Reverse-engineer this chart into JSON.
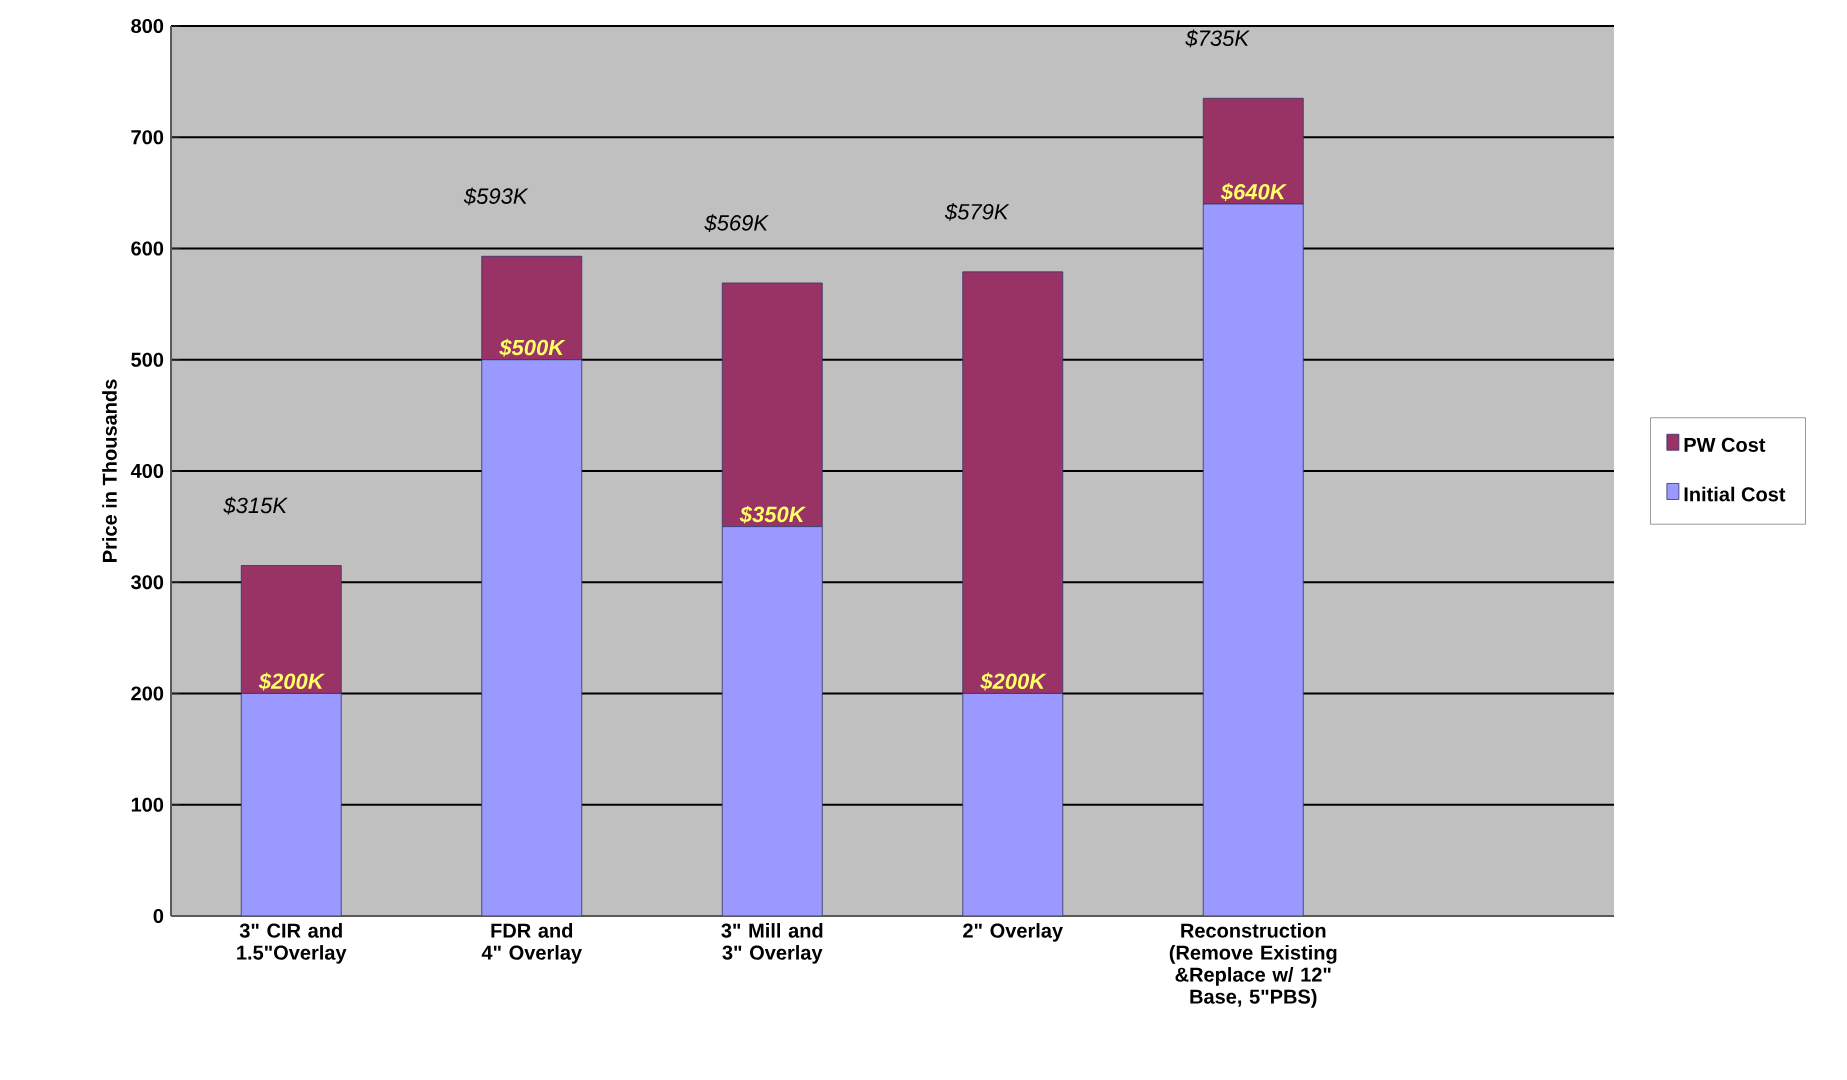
{
  "chart_data": {
    "type": "bar",
    "stacked": true,
    "ylabel": "Price in Thousands",
    "categories": [
      "3\" CIR and 1.5\"Overlay",
      "FDR and 4\" Overlay",
      "3\" Mill and 3\" Overlay",
      "2\" Overlay",
      "Reconstruction (Remove Existing &Replace w/ 12\" Base, 5\"PBS)",
      null
    ],
    "series": [
      {
        "name": "Initial Cost",
        "color": "#9999ff",
        "values": [
          200,
          500,
          350,
          200,
          640,
          null
        ],
        "value_labels": [
          "$200K",
          "$500K",
          "$350K",
          "$200K",
          "$640K",
          null
        ]
      },
      {
        "name": "PW Cost",
        "color": "#993366",
        "values": [
          115,
          93,
          219,
          379,
          95,
          null
        ]
      }
    ],
    "totals": [
      "$315K",
      "$593K",
      "$569K",
      "$579K",
      "$735K",
      null
    ],
    "ylim": [
      0,
      800
    ],
    "yticks": [
      0,
      100,
      200,
      300,
      400,
      500,
      600,
      700,
      800
    ],
    "grid": "y",
    "legend": "right"
  }
}
